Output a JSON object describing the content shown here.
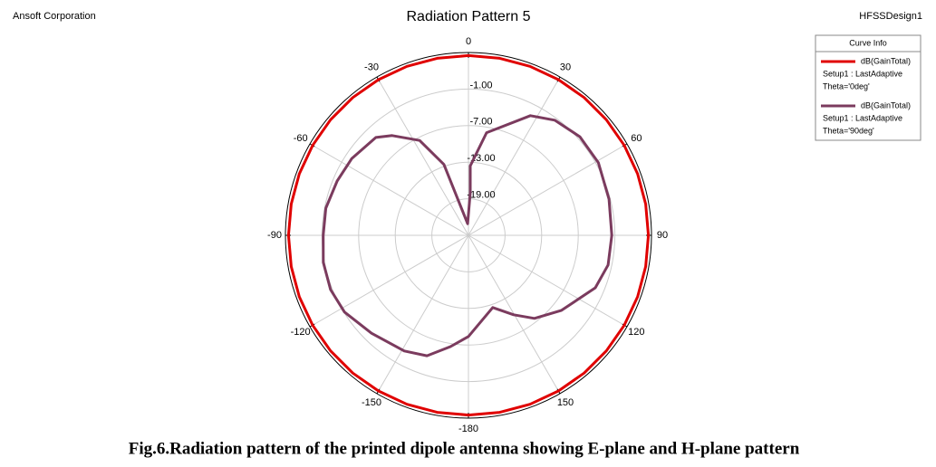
{
  "chart_data": {
    "type": "polar",
    "title": "Radiation Pattern 5",
    "company": "Ansoft Corporation",
    "design": "HFSSDesign1",
    "caption": "Fig.6.Radiation pattern of the printed dipole antenna showing E-plane and H-plane pattern",
    "legend_title": "Curve Info",
    "rlim": [
      -25,
      5
    ],
    "rticks": [
      {
        "value": -19,
        "label": "-19.00"
      },
      {
        "value": -13,
        "label": "-13.00"
      },
      {
        "value": -7,
        "label": "-7.00"
      },
      {
        "value": -1,
        "label": "-1.00"
      }
    ],
    "thetaticks": [
      0,
      30,
      60,
      90,
      120,
      150,
      -180,
      -150,
      -120,
      -90,
      -60,
      -30
    ],
    "series": [
      {
        "name": "dB(GainTotal)",
        "setup": "Setup1 : LastAdaptive",
        "condition": "Theta='0deg'",
        "color": "#e00000",
        "theta": [
          0,
          10,
          20,
          30,
          40,
          50,
          60,
          70,
          80,
          90,
          100,
          110,
          120,
          130,
          140,
          150,
          160,
          170,
          180,
          190,
          200,
          210,
          220,
          230,
          240,
          250,
          260,
          270,
          280,
          290,
          300,
          310,
          320,
          330,
          340,
          350
        ],
        "values": [
          4.5,
          4.5,
          4.5,
          4.5,
          4.5,
          4.5,
          4.5,
          4.5,
          4.5,
          4.5,
          4.5,
          4.5,
          4.5,
          4.5,
          4.5,
          4.5,
          4.5,
          4.5,
          4.5,
          4.5,
          4.5,
          4.5,
          4.5,
          4.5,
          4.5,
          4.5,
          4.5,
          4.5,
          4.5,
          4.5,
          4.5,
          4.5,
          4.5,
          4.5,
          4.5,
          4.5
        ]
      },
      {
        "name": "dB(GainTotal)",
        "setup": "Setup1 : LastAdaptive",
        "condition": "Theta='90deg'",
        "color": "#7b3b5e",
        "theta": [
          2.4,
          1.5,
          10,
          27.3,
          36.8,
          48.5,
          60.8,
          75.5,
          90,
          102,
          112.5,
          128.9,
          141.6,
          150.4,
          161.4,
          180,
          189.2,
          199,
          209,
          224.7,
          238.2,
          248.5,
          259.4,
          270,
          280.8,
          292.5,
          303.4,
          316.6,
          322.6,
          332.8,
          340.9,
          356
        ],
        "values": [
          -18.0,
          -13.6,
          -7.9,
          -2.9,
          -1.4,
          -0.6,
          -0.6,
          -1.2,
          -1.5,
          -1.6,
          -2.5,
          -5.4,
          -7.6,
          -10.0,
          -12.5,
          -8.4,
          -6.5,
          -4.1,
          -3.3,
          -2.4,
          -1.1,
          -0.7,
          -0.8,
          -1.2,
          -1.2,
          -1.7,
          -2.1,
          -2.9,
          -4.4,
          -7.5,
          -12.7,
          -23.1
        ]
      }
    ]
  }
}
